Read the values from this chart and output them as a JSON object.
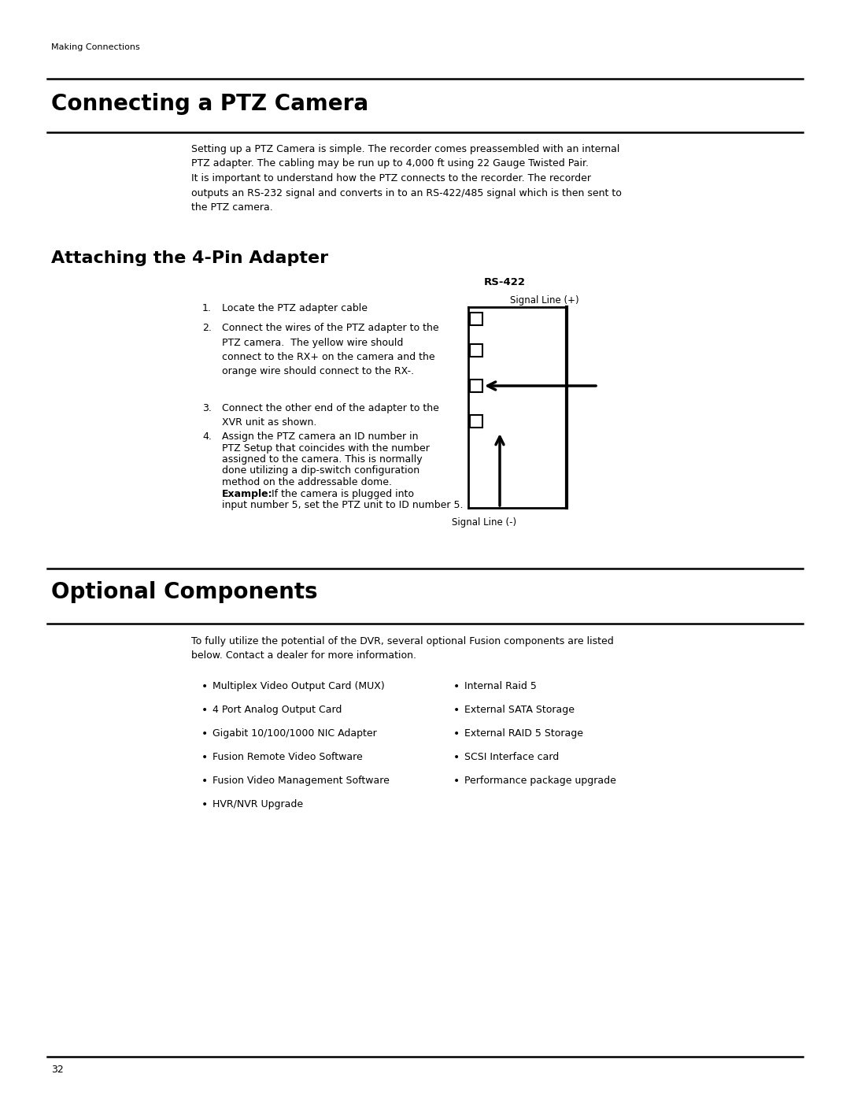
{
  "header_text": "Making Connections",
  "section1_title": "Connecting a PTZ Camera",
  "section1_body": "Setting up a PTZ Camera is simple. The recorder comes preassembled with an internal\nPTZ adapter. The cabling may be run up to 4,000 ft using 22 Gauge Twisted Pair.\nIt is important to understand how the PTZ connects to the recorder. The recorder\noutputs an RS-232 signal and converts in to an RS-422/485 signal which is then sent to\nthe PTZ camera.",
  "section2_title": "Attaching the 4-Pin Adapter",
  "section2_steps": [
    "Locate the PTZ adapter cable",
    "Connect the wires of the PTZ adapter to the\nPTZ camera.  The yellow wire should\nconnect to the RX+ on the camera and the\norange wire should connect to the RX-.",
    "Connect the other end of the adapter to the\nXVR unit as shown.",
    "Assign the PTZ camera an ID number in\nPTZ Setup that coincides with the number\nassigned to the camera. This is normally\ndone utilizing a dip-switch configuration\nmethod on the addressable dome.\nExample:  If the camera is plugged into\ninput number 5, set the PTZ unit to ID number 5."
  ],
  "rs422_label": "RS-422",
  "signal_plus_label": "Signal Line (+)",
  "signal_minus_label": "Signal Line (-)",
  "section3_title": "Optional Components",
  "section3_body": "To fully utilize the potential of the DVR, several optional Fusion components are listed\nbelow. Contact a dealer for more information.",
  "left_bullets": [
    "Multiplex Video Output Card (MUX)",
    "4 Port Analog Output Card",
    "Gigabit 10/100/1000 NIC Adapter",
    "Fusion Remote Video Software",
    "Fusion Video Management Software",
    "HVR/NVR Upgrade"
  ],
  "right_bullets": [
    "Internal Raid 5",
    "External SATA Storage",
    "External RAID 5 Storage",
    "SCSI Interface card",
    "Performance package upgrade"
  ],
  "page_number": "32",
  "bg_color": "#ffffff",
  "text_color": "#000000"
}
